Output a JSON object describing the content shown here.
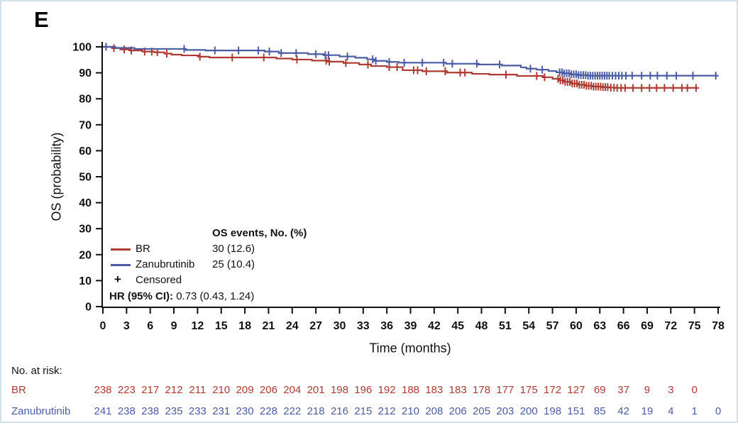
{
  "panel_label": "E",
  "colors": {
    "br_red": "#AE3B33",
    "zanubrutinib_blue": "#4C5CA2",
    "axis_black": "#111111",
    "frame_border": "#cfe2ec"
  },
  "legend": {
    "os_events_header": "OS events, No. (%)",
    "items": [
      {
        "label": "BR",
        "value": "30 (12.6)",
        "color": "#AE3B33"
      },
      {
        "label": "Zanubrutinib",
        "value": "25 (10.4)",
        "color": "#4C5CA2"
      }
    ],
    "censored_symbol": "+",
    "censored_label": "Censored",
    "hr_label": "HR (95% CI):",
    "hr_value": "0.73 (0.43, 1.24)"
  },
  "chart_data": {
    "type": "line",
    "subtype": "kaplan-meier-step",
    "title": "",
    "xlabel": "Time (months)",
    "ylabel": "OS (probability)",
    "xlim": [
      0,
      78
    ],
    "ylim": [
      0,
      100
    ],
    "grid": false,
    "x_ticks": [
      0,
      3,
      6,
      9,
      12,
      15,
      18,
      21,
      24,
      27,
      30,
      33,
      36,
      39,
      42,
      45,
      48,
      51,
      54,
      57,
      60,
      63,
      66,
      69,
      72,
      75,
      78
    ],
    "y_ticks": [
      0,
      10,
      20,
      30,
      40,
      50,
      60,
      70,
      80,
      90,
      100
    ],
    "series": [
      {
        "name": "BR",
        "color": "#AE3B33",
        "os_events": "30 (12.6)",
        "start": [
          0,
          100
        ],
        "end_t": 75.4,
        "steps": [
          [
            1.2,
            99.5
          ],
          [
            2.2,
            99.0
          ],
          [
            3.5,
            98.6
          ],
          [
            5,
            98.2
          ],
          [
            6.5,
            97.9
          ],
          [
            7.8,
            97.4
          ],
          [
            8.7,
            97.0
          ],
          [
            10,
            96.7
          ],
          [
            12.2,
            96.2
          ],
          [
            13.5,
            95.9
          ],
          [
            22,
            95.5
          ],
          [
            24,
            95.1
          ],
          [
            26.5,
            94.7
          ],
          [
            28.5,
            94.3
          ],
          [
            30.5,
            93.8
          ],
          [
            32.5,
            93.2
          ],
          [
            34,
            92.6
          ],
          [
            36,
            92.2
          ],
          [
            38,
            91.0
          ],
          [
            40.5,
            90.6
          ],
          [
            43.5,
            90.1
          ],
          [
            46.8,
            89.6
          ],
          [
            49,
            89.3
          ],
          [
            52.5,
            88.8
          ],
          [
            55.8,
            88.3
          ],
          [
            57,
            87.7
          ],
          [
            57.8,
            87.1
          ],
          [
            58.6,
            86.5
          ],
          [
            59.4,
            85.9
          ],
          [
            60.2,
            85.4
          ],
          [
            61.2,
            85.0
          ],
          [
            62.2,
            84.7
          ],
          [
            63.2,
            84.5
          ],
          [
            64.2,
            84.3
          ],
          [
            65,
            84.2
          ]
        ],
        "censored_t": [
          0.4,
          1.4,
          2.7,
          3.6,
          5.3,
          6.2,
          6.9,
          8.1,
          12.3,
          16.4,
          20.4,
          24.6,
          28.3,
          28.7,
          30.8,
          33.6,
          36.3,
          37.3,
          39.4,
          39.9,
          41.0,
          43.4,
          45.3,
          45.9,
          51.1,
          55.0,
          56.0,
          57.7,
          58.0,
          58.3,
          58.6,
          58.9,
          59.2,
          59.5,
          59.8,
          60.1,
          60.4,
          60.7,
          61.0,
          61.3,
          61.6,
          61.9,
          62.2,
          62.5,
          62.8,
          63.1,
          63.4,
          63.7,
          64.0,
          64.4,
          64.8,
          65.2,
          65.7,
          66.2,
          67.2,
          68.3,
          69.3,
          70.2,
          71.2,
          72.3,
          73.4,
          74.1,
          75.2
        ]
      },
      {
        "name": "Zanubrutinib",
        "color": "#4C5CA2",
        "os_events": "25 (10.4)",
        "start": [
          0,
          100
        ],
        "end_t": 78,
        "steps": [
          [
            1.6,
            99.6
          ],
          [
            4,
            99.2
          ],
          [
            10.5,
            98.8
          ],
          [
            13,
            98.6
          ],
          [
            20.5,
            98.2
          ],
          [
            22.3,
            97.6
          ],
          [
            26,
            97.2
          ],
          [
            28,
            96.8
          ],
          [
            30,
            96.3
          ],
          [
            32,
            95.8
          ],
          [
            33.5,
            95.2
          ],
          [
            34.5,
            94.6
          ],
          [
            36,
            94.2
          ],
          [
            37.5,
            93.9
          ],
          [
            43.5,
            93.5
          ],
          [
            47.5,
            93.2
          ],
          [
            50.6,
            92.8
          ],
          [
            53,
            92.1
          ],
          [
            53.7,
            91.6
          ],
          [
            55,
            91.2
          ],
          [
            56.5,
            90.7
          ],
          [
            57.5,
            90.2
          ],
          [
            58.3,
            89.8
          ],
          [
            59.3,
            89.4
          ],
          [
            60.3,
            89.1
          ],
          [
            61.5,
            88.9
          ]
        ],
        "censored_t": [
          0.4,
          10.3,
          14.2,
          17.2,
          19.7,
          21.1,
          22.6,
          24.5,
          27.0,
          28.2,
          28.6,
          31.0,
          34.2,
          34.6,
          36.3,
          38.2,
          40.5,
          43.2,
          44.3,
          47.4,
          50.3,
          54.2,
          55.7,
          57.9,
          58.2,
          58.5,
          58.8,
          59.1,
          59.4,
          59.7,
          60.0,
          60.3,
          60.6,
          60.9,
          61.2,
          61.5,
          61.8,
          62.1,
          62.4,
          62.7,
          63.0,
          63.3,
          63.6,
          63.9,
          64.2,
          64.6,
          65.0,
          65.4,
          65.8,
          66.3,
          67.1,
          68.3,
          69.4,
          70.3,
          71.5,
          72.7,
          74.8,
          77.7
        ]
      }
    ]
  },
  "risk_table": {
    "title": "No. at risk:",
    "times": [
      0,
      3,
      6,
      9,
      12,
      15,
      18,
      21,
      24,
      27,
      30,
      33,
      36,
      39,
      42,
      45,
      48,
      51,
      54,
      57,
      60,
      63,
      66,
      69,
      72,
      75,
      78
    ],
    "rows": [
      {
        "name": "BR",
        "color": "#AE3B33",
        "values": [
          238,
          223,
          217,
          212,
          211,
          210,
          209,
          206,
          204,
          201,
          198,
          196,
          192,
          188,
          183,
          183,
          178,
          177,
          175,
          172,
          127,
          69,
          37,
          9,
          3,
          0
        ]
      },
      {
        "name": "Zanubrutinib",
        "color": "#4C5CA2",
        "values": [
          241,
          238,
          238,
          235,
          233,
          231,
          230,
          228,
          222,
          218,
          216,
          215,
          212,
          210,
          208,
          206,
          205,
          203,
          200,
          198,
          151,
          85,
          42,
          19,
          4,
          1,
          0
        ]
      }
    ]
  }
}
